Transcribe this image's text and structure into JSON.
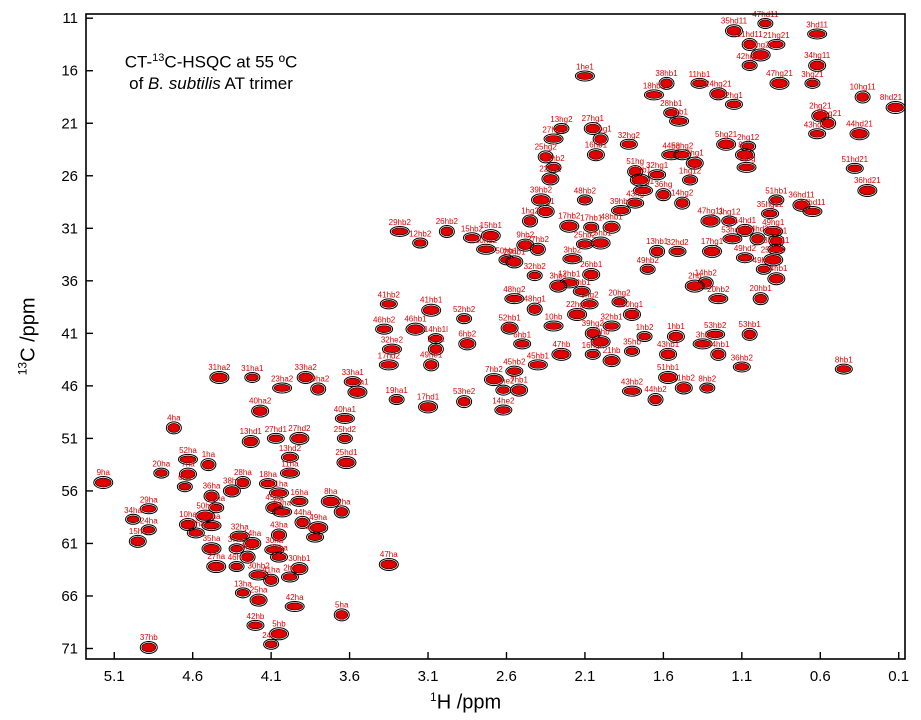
{
  "chart_data": {
    "type": "scatter",
    "title_line1_pre": "CT-",
    "title_line1_sup": "13",
    "title_line1_post": "C-HSQC at 55 ºC",
    "title_line2_pre": "of ",
    "title_line2_italic": "B. subtilis",
    "title_line2_post": " AT trimer",
    "xlabel_sup": "1",
    "xlabel_text": "H /ppm",
    "ylabel_sup": "13",
    "ylabel_text": "C /ppm",
    "x_reversed": true,
    "y_reversed": true,
    "xlim": [
      5.28,
      0.06
    ],
    "ylim": [
      10.6,
      72.0
    ],
    "x_ticks": [
      "5.1",
      "4.6",
      "4.1",
      "3.6",
      "3.1",
      "2.6",
      "2.1",
      "1.6",
      "1.1",
      "0.6",
      "0.1"
    ],
    "x_tick_values": [
      5.1,
      4.6,
      4.1,
      3.6,
      3.1,
      2.6,
      2.1,
      1.6,
      1.1,
      0.6,
      0.1
    ],
    "y_ticks": [
      "11",
      "16",
      "21",
      "26",
      "31",
      "36",
      "41",
      "46",
      "51",
      "56",
      "61",
      "66",
      "71"
    ],
    "y_tick_values": [
      11,
      16,
      21,
      26,
      31,
      36,
      41,
      46,
      51,
      56,
      61,
      66,
      71
    ],
    "colors": {
      "spectrum_1": "#000000",
      "spectrum_2": "#e00000"
    },
    "peaks": [
      {
        "label": "47hd11",
        "x": 0.95,
        "y": 11.5
      },
      {
        "label": "35hd11",
        "x": 1.15,
        "y": 12.2
      },
      {
        "label": "3hd11",
        "x": 0.62,
        "y": 12.5
      },
      {
        "label": "21hd11",
        "x": 1.05,
        "y": 13.5
      },
      {
        "label": "21hg21",
        "x": 0.88,
        "y": 13.5
      },
      {
        "label": "35hg21",
        "x": 0.98,
        "y": 14.5
      },
      {
        "label": "42hg21",
        "x": 1.05,
        "y": 15.5
      },
      {
        "label": "34hg11",
        "x": 0.62,
        "y": 15.5
      },
      {
        "label": "1he1",
        "x": 2.1,
        "y": 16.5
      },
      {
        "label": "38hb1",
        "x": 1.58,
        "y": 17.2
      },
      {
        "label": "11hb1",
        "x": 1.37,
        "y": 17.2
      },
      {
        "label": "47hg21",
        "x": 0.86,
        "y": 17.2
      },
      {
        "label": "3hg21",
        "x": 0.65,
        "y": 17.2
      },
      {
        "label": "24hg21",
        "x": 1.25,
        "y": 18.2
      },
      {
        "label": "18hb1",
        "x": 1.66,
        "y": 18.3
      },
      {
        "label": "10hg11",
        "x": 0.33,
        "y": 18.5
      },
      {
        "label": "2hg1",
        "x": 1.15,
        "y": 19.2
      },
      {
        "label": "8hd21",
        "x": 0.12,
        "y": 19.5
      },
      {
        "label": "28hb1",
        "x": 1.55,
        "y": 20.0
      },
      {
        "label": "2hg21",
        "x": 0.6,
        "y": 20.3
      },
      {
        "label": "4hb1",
        "x": 1.5,
        "y": 20.8
      },
      {
        "label": "34hg21",
        "x": 0.55,
        "y": 21.0
      },
      {
        "label": "43hd21",
        "x": 0.62,
        "y": 22.0
      },
      {
        "label": "44hd21",
        "x": 0.35,
        "y": 22.0
      },
      {
        "label": "13hg2",
        "x": 2.25,
        "y": 21.5
      },
      {
        "label": "27hg1",
        "x": 2.05,
        "y": 21.5
      },
      {
        "label": "27hg2",
        "x": 2.3,
        "y": 22.5
      },
      {
        "label": "13hg1",
        "x": 2.0,
        "y": 22.5
      },
      {
        "label": "32hg2",
        "x": 1.82,
        "y": 23.0
      },
      {
        "label": "5hg21",
        "x": 1.2,
        "y": 23.0
      },
      {
        "label": "2hg12",
        "x": 1.06,
        "y": 23.2
      },
      {
        "label": "16hb1",
        "x": 2.03,
        "y": 24.0
      },
      {
        "label": "44hg",
        "x": 1.55,
        "y": 24.0
      },
      {
        "label": "25hg2",
        "x": 2.35,
        "y": 24.2
      },
      {
        "label": "53hg2",
        "x": 1.48,
        "y": 24.0
      },
      {
        "label": "8hg",
        "x": 1.08,
        "y": 24.0
      },
      {
        "label": "16hb2",
        "x": 2.3,
        "y": 25.2
      },
      {
        "label": "4hg1",
        "x": 1.4,
        "y": 24.8
      },
      {
        "label": "49hg",
        "x": 1.07,
        "y": 25.2
      },
      {
        "label": "51hg",
        "x": 1.78,
        "y": 25.6
      },
      {
        "label": "32hg1",
        "x": 1.64,
        "y": 25.9
      },
      {
        "label": "22hb1",
        "x": 1.75,
        "y": 26.4
      },
      {
        "label": "1hg12",
        "x": 1.43,
        "y": 26.4
      },
      {
        "label": "22hb2",
        "x": 2.32,
        "y": 26.3
      },
      {
        "label": "25hg1",
        "x": 1.73,
        "y": 27.4
      },
      {
        "label": "36hg",
        "x": 1.6,
        "y": 27.8
      },
      {
        "label": "51hd21",
        "x": 0.38,
        "y": 25.3
      },
      {
        "label": "36hd21",
        "x": 0.3,
        "y": 27.4
      },
      {
        "label": "51hb1",
        "x": 0.88,
        "y": 28.3
      },
      {
        "label": "36hd11",
        "x": 0.72,
        "y": 28.8
      },
      {
        "label": "44hd11",
        "x": 0.65,
        "y": 29.4
      },
      {
        "label": "14hg2",
        "x": 1.48,
        "y": 28.6
      },
      {
        "label": "43hg",
        "x": 1.78,
        "y": 28.6
      },
      {
        "label": "39hb2",
        "x": 2.38,
        "y": 28.3
      },
      {
        "label": "48hb2",
        "x": 2.1,
        "y": 28.3
      },
      {
        "label": "1hg1",
        "x": 2.35,
        "y": 29.4
      },
      {
        "label": "39hb1",
        "x": 1.87,
        "y": 29.3
      },
      {
        "label": "1hg2",
        "x": 2.45,
        "y": 30.3
      },
      {
        "label": "35hg12",
        "x": 0.92,
        "y": 29.6
      },
      {
        "label": "47hg11",
        "x": 1.3,
        "y": 30.3
      },
      {
        "label": "3hg12",
        "x": 1.18,
        "y": 30.3
      },
      {
        "label": "14hd1",
        "x": 1.08,
        "y": 31.2
      },
      {
        "label": "49hg1",
        "x": 0.9,
        "y": 31.3
      },
      {
        "label": "3hg11",
        "x": 0.88,
        "y": 32.2
      },
      {
        "label": "35hg11",
        "x": 0.88,
        "y": 33.0
      },
      {
        "label": "17hb2",
        "x": 2.2,
        "y": 30.8
      },
      {
        "label": "17hb1",
        "x": 2.06,
        "y": 30.9
      },
      {
        "label": "48hb1",
        "x": 1.93,
        "y": 30.9
      },
      {
        "label": "29hb2",
        "x": 3.28,
        "y": 31.3
      },
      {
        "label": "26hb2",
        "x": 2.98,
        "y": 31.3
      },
      {
        "label": "15hb2",
        "x": 2.82,
        "y": 31.9
      },
      {
        "label": "15hb1",
        "x": 2.7,
        "y": 31.7
      },
      {
        "label": "12hb2",
        "x": 3.15,
        "y": 32.4
      },
      {
        "label": "9hb2",
        "x": 2.48,
        "y": 32.6
      },
      {
        "label": "50hb2",
        "x": 2.73,
        "y": 33.0
      },
      {
        "label": "27hb2",
        "x": 2.4,
        "y": 33.0
      },
      {
        "label": "25hb2",
        "x": 2.1,
        "y": 32.5
      },
      {
        "label": "25hb1",
        "x": 2.0,
        "y": 32.4
      },
      {
        "label": "50hb1",
        "x": 2.6,
        "y": 34.0
      },
      {
        "label": "29hb1",
        "x": 2.55,
        "y": 34.2
      },
      {
        "label": "53hd2",
        "x": 1.16,
        "y": 32.0
      },
      {
        "label": "14hd2",
        "x": 1.0,
        "y": 32.0
      },
      {
        "label": "49hd2",
        "x": 1.08,
        "y": 33.8
      },
      {
        "label": "25hb1r",
        "x": 0.9,
        "y": 34.0
      },
      {
        "label": "49hb1",
        "x": 0.96,
        "y": 34.9
      },
      {
        "label": "14hb1",
        "x": 0.88,
        "y": 35.8
      },
      {
        "label": "3hb2",
        "x": 2.18,
        "y": 33.9
      },
      {
        "label": "13hb1",
        "x": 1.64,
        "y": 33.2
      },
      {
        "label": "32hd2",
        "x": 1.51,
        "y": 33.2
      },
      {
        "label": "17hg1",
        "x": 1.29,
        "y": 33.2
      },
      {
        "label": "49hb2",
        "x": 1.7,
        "y": 34.9
      },
      {
        "label": "26hb1",
        "x": 2.06,
        "y": 35.4
      },
      {
        "label": "12hb1",
        "x": 2.2,
        "y": 36.2
      },
      {
        "label": "14hb2",
        "x": 1.33,
        "y": 36.2
      },
      {
        "label": "2hb1",
        "x": 2.12,
        "y": 37.0
      },
      {
        "label": "2hb",
        "x": 1.4,
        "y": 36.5
      },
      {
        "label": "32hb2",
        "x": 2.42,
        "y": 35.5
      },
      {
        "label": "3hb1",
        "x": 2.27,
        "y": 36.5
      },
      {
        "label": "48hg2",
        "x": 2.55,
        "y": 37.7
      },
      {
        "label": "48hg1",
        "x": 2.42,
        "y": 38.7
      },
      {
        "label": "9hg2",
        "x": 2.07,
        "y": 38.2
      },
      {
        "label": "22hg2",
        "x": 2.15,
        "y": 39.2
      },
      {
        "label": "20hg2",
        "x": 1.88,
        "y": 38.0
      },
      {
        "label": "20hg1",
        "x": 1.8,
        "y": 39.2
      },
      {
        "label": "20hb2",
        "x": 1.25,
        "y": 37.7
      },
      {
        "label": "20hb1",
        "x": 0.98,
        "y": 37.7
      },
      {
        "label": "41hb2",
        "x": 3.35,
        "y": 38.2
      },
      {
        "label": "41hb1",
        "x": 3.08,
        "y": 38.8
      },
      {
        "label": "52hb2",
        "x": 2.87,
        "y": 39.6
      },
      {
        "label": "52hb1",
        "x": 2.58,
        "y": 40.5
      },
      {
        "label": "10hb",
        "x": 2.3,
        "y": 40.3
      },
      {
        "label": "39hg2",
        "x": 2.05,
        "y": 41.0
      },
      {
        "label": "32hb1",
        "x": 1.93,
        "y": 40.3
      },
      {
        "label": "34hb",
        "x": 2.0,
        "y": 41.8
      },
      {
        "label": "1hb2",
        "x": 1.72,
        "y": 41.3
      },
      {
        "label": "1hb1",
        "x": 1.52,
        "y": 41.3
      },
      {
        "label": "53hb2",
        "x": 1.27,
        "y": 41.1
      },
      {
        "label": "53hb1",
        "x": 1.05,
        "y": 41.1
      },
      {
        "label": "46hb2",
        "x": 3.38,
        "y": 40.6
      },
      {
        "label": "46hb1",
        "x": 3.18,
        "y": 40.6
      },
      {
        "label": "14hb1l",
        "x": 3.05,
        "y": 41.5
      },
      {
        "label": "6hb2",
        "x": 2.85,
        "y": 42.0
      },
      {
        "label": "32he2",
        "x": 3.33,
        "y": 42.5
      },
      {
        "label": "1hd1",
        "x": 3.05,
        "y": 42.5
      },
      {
        "label": "6hb1",
        "x": 2.5,
        "y": 42.0
      },
      {
        "label": "47hb",
        "x": 2.25,
        "y": 43.0
      },
      {
        "label": "16hg2",
        "x": 2.05,
        "y": 43.0
      },
      {
        "label": "21hb",
        "x": 1.93,
        "y": 43.6
      },
      {
        "label": "17hd2",
        "x": 3.35,
        "y": 44.0
      },
      {
        "label": "49he1",
        "x": 3.08,
        "y": 44.0
      },
      {
        "label": "45hb2",
        "x": 2.55,
        "y": 44.6
      },
      {
        "label": "7hb2",
        "x": 2.68,
        "y": 45.4
      },
      {
        "label": "49he2",
        "x": 2.62,
        "y": 46.4
      },
      {
        "label": "7hb1",
        "x": 2.52,
        "y": 46.4
      },
      {
        "label": "45hb1",
        "x": 2.4,
        "y": 44.0
      },
      {
        "label": "53he2",
        "x": 2.87,
        "y": 47.5
      },
      {
        "label": "14he2",
        "x": 2.62,
        "y": 48.3
      },
      {
        "label": "17hd1",
        "x": 3.1,
        "y": 48.0
      },
      {
        "label": "35hb",
        "x": 1.8,
        "y": 42.7
      },
      {
        "label": "43hb1",
        "x": 1.57,
        "y": 43.0
      },
      {
        "label": "3hb",
        "x": 1.35,
        "y": 42.0
      },
      {
        "label": "44hb1",
        "x": 1.25,
        "y": 43.0
      },
      {
        "label": "36hb2",
        "x": 1.1,
        "y": 44.2
      },
      {
        "label": "51hb1",
        "x": 1.57,
        "y": 45.2
      },
      {
        "label": "8hb2",
        "x": 1.32,
        "y": 46.2
      },
      {
        "label": "51hb2",
        "x": 1.47,
        "y": 46.2
      },
      {
        "label": "43hb2",
        "x": 1.8,
        "y": 46.5
      },
      {
        "label": "44hb2",
        "x": 1.65,
        "y": 47.3
      },
      {
        "label": "8hb1",
        "x": 0.45,
        "y": 44.4
      },
      {
        "label": "31ha2",
        "x": 4.43,
        "y": 45.2
      },
      {
        "label": "31ha1",
        "x": 4.22,
        "y": 45.2
      },
      {
        "label": "33ha2",
        "x": 3.88,
        "y": 45.2
      },
      {
        "label": "23ha2",
        "x": 4.03,
        "y": 46.2
      },
      {
        "label": "19ha2",
        "x": 3.8,
        "y": 46.3
      },
      {
        "label": "33ha1",
        "x": 3.58,
        "y": 45.6
      },
      {
        "label": "23ha1",
        "x": 3.55,
        "y": 46.6
      },
      {
        "label": "19ha1",
        "x": 3.3,
        "y": 47.3
      },
      {
        "label": "40ha2",
        "x": 4.17,
        "y": 48.4
      },
      {
        "label": "40ha1",
        "x": 3.63,
        "y": 49.1
      },
      {
        "label": "4ha",
        "x": 4.72,
        "y": 50.0
      },
      {
        "label": "27hd1",
        "x": 4.07,
        "y": 51.0
      },
      {
        "label": "27hd2",
        "x": 3.92,
        "y": 51.0
      },
      {
        "label": "25hd2",
        "x": 3.63,
        "y": 51.0
      },
      {
        "label": "13hd1",
        "x": 4.23,
        "y": 51.3
      },
      {
        "label": "52ha",
        "x": 4.63,
        "y": 53.0
      },
      {
        "label": "1ha",
        "x": 4.5,
        "y": 53.5
      },
      {
        "label": "13hd2",
        "x": 3.98,
        "y": 52.8
      },
      {
        "label": "25hd1",
        "x": 3.62,
        "y": 53.3
      },
      {
        "label": "20ha",
        "x": 4.8,
        "y": 54.3
      },
      {
        "label": "7ha",
        "x": 4.63,
        "y": 54.4
      },
      {
        "label": "11ha",
        "x": 3.98,
        "y": 54.3
      },
      {
        "label": "28ha",
        "x": 4.28,
        "y": 55.2
      },
      {
        "label": "18ha",
        "x": 4.12,
        "y": 55.3
      },
      {
        "label": "9ha",
        "x": 5.17,
        "y": 55.2
      },
      {
        "label": "6ha",
        "x": 4.65,
        "y": 55.6
      },
      {
        "label": "38ha",
        "x": 4.35,
        "y": 56.0
      },
      {
        "label": "51ha",
        "x": 4.05,
        "y": 56.2
      },
      {
        "label": "36ha",
        "x": 4.48,
        "y": 56.5
      },
      {
        "label": "16ha",
        "x": 3.92,
        "y": 57.0
      },
      {
        "label": "8ha",
        "x": 3.72,
        "y": 57.0
      },
      {
        "label": "12ha",
        "x": 4.45,
        "y": 57.6
      },
      {
        "label": "45ha",
        "x": 4.08,
        "y": 57.6
      },
      {
        "label": "53ha",
        "x": 4.03,
        "y": 58.0
      },
      {
        "label": "22ha",
        "x": 3.65,
        "y": 58.0
      },
      {
        "label": "29ha",
        "x": 4.88,
        "y": 57.7
      },
      {
        "label": "50ha",
        "x": 4.52,
        "y": 58.4
      },
      {
        "label": "34ha",
        "x": 4.98,
        "y": 58.7
      },
      {
        "label": "10ha",
        "x": 4.63,
        "y": 59.2
      },
      {
        "label": "39ha",
        "x": 4.48,
        "y": 59.3
      },
      {
        "label": "44ha",
        "x": 3.9,
        "y": 59.0
      },
      {
        "label": "17ha",
        "x": 4.58,
        "y": 60.0
      },
      {
        "label": "49ha",
        "x": 3.8,
        "y": 59.5
      },
      {
        "label": "24ha",
        "x": 4.88,
        "y": 59.7
      },
      {
        "label": "15ha",
        "x": 4.95,
        "y": 60.8
      },
      {
        "label": "32ha",
        "x": 4.3,
        "y": 60.3
      },
      {
        "label": "43ha",
        "x": 4.05,
        "y": 60.2
      },
      {
        "label": "48ha",
        "x": 3.82,
        "y": 60.4
      },
      {
        "label": "35ha",
        "x": 4.48,
        "y": 61.5
      },
      {
        "label": "37ha",
        "x": 4.32,
        "y": 61.5
      },
      {
        "label": "14ha",
        "x": 4.22,
        "y": 61.0
      },
      {
        "label": "30ha",
        "x": 4.08,
        "y": 61.6
      },
      {
        "label": "3ha",
        "x": 4.25,
        "y": 62.3
      },
      {
        "label": "21ha",
        "x": 4.05,
        "y": 62.3
      },
      {
        "label": "27ha",
        "x": 4.45,
        "y": 63.2
      },
      {
        "label": "46ha",
        "x": 4.32,
        "y": 63.2
      },
      {
        "label": "30hb1",
        "x": 3.92,
        "y": 63.4
      },
      {
        "label": "30hb2",
        "x": 4.18,
        "y": 64.0
      },
      {
        "label": "41ha",
        "x": 4.1,
        "y": 64.5
      },
      {
        "label": "2ha",
        "x": 3.98,
        "y": 64.2
      },
      {
        "label": "47ha",
        "x": 3.35,
        "y": 63.0
      },
      {
        "label": "13ha",
        "x": 4.28,
        "y": 65.7
      },
      {
        "label": "25ha",
        "x": 4.18,
        "y": 66.4
      },
      {
        "label": "42ha",
        "x": 3.95,
        "y": 67.0
      },
      {
        "label": "5ha",
        "x": 3.65,
        "y": 67.8
      },
      {
        "label": "42hb",
        "x": 4.2,
        "y": 68.8
      },
      {
        "label": "5hb",
        "x": 4.05,
        "y": 69.6
      },
      {
        "label": "24hb",
        "x": 4.1,
        "y": 70.6
      },
      {
        "label": "37hb",
        "x": 4.88,
        "y": 70.9
      }
    ]
  }
}
